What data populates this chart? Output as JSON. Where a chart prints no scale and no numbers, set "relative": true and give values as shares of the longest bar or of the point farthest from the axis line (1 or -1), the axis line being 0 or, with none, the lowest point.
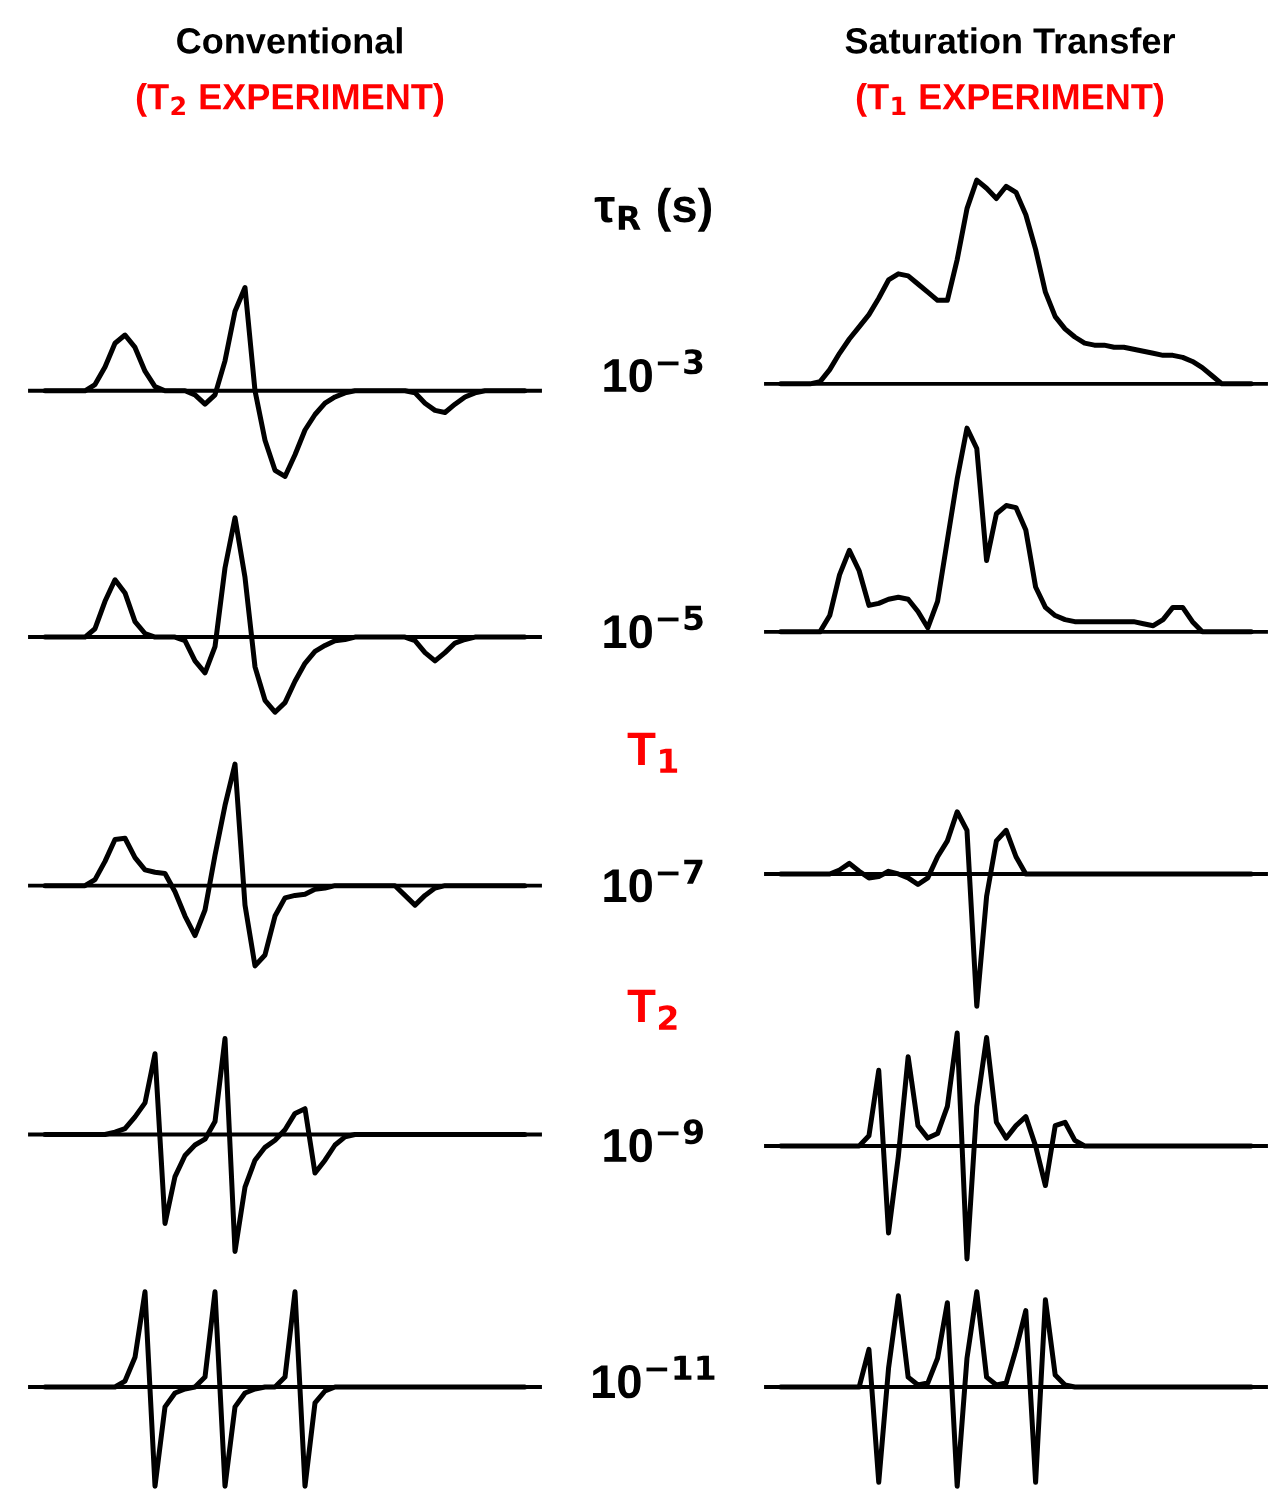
{
  "chart_data": [
    {
      "type": "line",
      "relative": true,
      "title": "Conventional",
      "subtitle": "(T$_{2}$ EXPERIMENT)",
      "annotations": [
        "τ$_{R}$ (s)"
      ],
      "y2label": "10$^{−3}$",
      "categories": [
        null,
        null,
        null,
        null,
        null,
        null,
        null,
        null,
        null,
        null,
        null,
        null,
        null,
        null,
        null,
        null,
        null,
        null,
        null,
        null,
        null,
        null,
        null,
        null,
        null,
        null,
        null,
        null,
        null,
        null,
        null,
        null,
        null,
        null,
        null,
        null,
        null,
        null,
        null,
        null,
        null,
        null,
        null,
        null,
        null,
        null,
        null,
        null,
        null
      ],
      "series": [
        {
          "color": "#000000",
          "values": [
            0,
            0,
            0,
            0,
            0,
            0.06,
            0.23,
            0.46,
            0.54,
            0.42,
            0.19,
            0.04,
            0,
            0,
            0,
            -0.04,
            -0.13,
            -0.04,
            0.29,
            0.77,
            1,
            0,
            -0.48,
            -0.77,
            -0.83,
            -0.62,
            -0.38,
            -0.23,
            -0.12,
            -0.06,
            -0.02,
            0,
            0,
            0,
            0,
            0,
            0,
            -0.02,
            -0.12,
            -0.19,
            -0.21,
            -0.13,
            -0.06,
            -0.02,
            0,
            0,
            0,
            0,
            0
          ]
        }
      ]
    },
    {
      "type": "line",
      "relative": true,
      "categories": [
        null,
        null,
        null,
        null,
        null,
        null,
        null,
        null,
        null,
        null,
        null,
        null,
        null,
        null,
        null,
        null,
        null,
        null,
        null,
        null,
        null,
        null,
        null,
        null,
        null,
        null,
        null,
        null,
        null,
        null,
        null,
        null,
        null,
        null,
        null,
        null,
        null,
        null,
        null,
        null,
        null,
        null,
        null,
        null,
        null,
        null,
        null,
        null,
        null
      ],
      "y2label": "10$^{−5}$",
      "annotations": [
        "T$_{1}$"
      ],
      "series": [
        {
          "color": "#000000",
          "values": [
            0,
            0,
            0,
            0,
            0,
            0.07,
            0.3,
            0.48,
            0.37,
            0.13,
            0.03,
            0,
            0,
            0,
            -0.03,
            -0.2,
            -0.3,
            -0.08,
            0.58,
            1,
            0.5,
            -0.25,
            -0.53,
            -0.63,
            -0.55,
            -0.37,
            -0.22,
            -0.12,
            -0.07,
            -0.03,
            -0.02,
            0,
            0,
            0,
            0,
            0,
            0,
            -0.03,
            -0.13,
            -0.2,
            -0.13,
            -0.05,
            -0.02,
            0,
            0,
            0,
            0,
            0,
            0
          ]
        }
      ]
    },
    {
      "type": "line",
      "relative": true,
      "categories": [
        null,
        null,
        null,
        null,
        null,
        null,
        null,
        null,
        null,
        null,
        null,
        null,
        null,
        null,
        null,
        null,
        null,
        null,
        null,
        null,
        null,
        null,
        null,
        null,
        null,
        null,
        null,
        null,
        null,
        null,
        null,
        null,
        null,
        null,
        null,
        null,
        null,
        null,
        null,
        null,
        null,
        null,
        null,
        null,
        null,
        null,
        null,
        null,
        null
      ],
      "y2label": "10$^{−7}$",
      "annotations": [
        "T$_{2}$"
      ],
      "series": [
        {
          "color": "#000000",
          "values": [
            0,
            0,
            0,
            0,
            0,
            0.05,
            0.2,
            0.38,
            0.39,
            0.23,
            0.13,
            0.11,
            0.1,
            -0.05,
            -0.25,
            -0.41,
            -0.2,
            0.25,
            0.66,
            1,
            -0.16,
            -0.66,
            -0.57,
            -0.25,
            -0.1,
            -0.08,
            -0.07,
            -0.03,
            -0.02,
            0,
            0,
            0,
            0,
            0,
            0,
            0,
            -0.08,
            -0.16,
            -0.08,
            -0.02,
            0,
            0,
            0,
            0,
            0,
            0,
            0,
            0,
            0
          ]
        }
      ]
    },
    {
      "type": "line",
      "relative": true,
      "categories": [
        null,
        null,
        null,
        null,
        null,
        null,
        null,
        null,
        null,
        null,
        null,
        null,
        null,
        null,
        null,
        null,
        null,
        null,
        null,
        null,
        null,
        null,
        null,
        null,
        null,
        null,
        null,
        null,
        null,
        null,
        null,
        null,
        null,
        null,
        null,
        null,
        null,
        null,
        null,
        null,
        null,
        null,
        null,
        null,
        null,
        null,
        null,
        null,
        null
      ],
      "y2label": "10$^{−9}$",
      "series": [
        {
          "color": "#000000",
          "values": [
            0,
            0,
            0,
            0,
            0,
            0,
            0,
            0.02,
            0.05,
            0.15,
            0.27,
            0.69,
            -0.76,
            -0.36,
            -0.18,
            -0.09,
            -0.04,
            0.11,
            0.82,
            -1,
            -0.45,
            -0.22,
            -0.11,
            -0.05,
            0.04,
            0.18,
            0.22,
            -0.33,
            -0.22,
            -0.09,
            -0.02,
            0,
            0,
            0,
            0,
            0,
            0,
            0,
            0,
            0,
            0,
            0,
            0,
            0,
            0,
            0,
            0,
            0,
            0
          ]
        }
      ]
    },
    {
      "type": "line",
      "relative": true,
      "categories": [
        null,
        null,
        null,
        null,
        null,
        null,
        null,
        null,
        null,
        null,
        null,
        null,
        null,
        null,
        null,
        null,
        null,
        null,
        null,
        null,
        null,
        null,
        null,
        null,
        null,
        null,
        null,
        null,
        null,
        null,
        null,
        null,
        null,
        null,
        null,
        null,
        null,
        null,
        null,
        null,
        null,
        null,
        null,
        null,
        null,
        null,
        null,
        null,
        null
      ],
      "y2label": "10$^{−11}$",
      "series": [
        {
          "color": "#000000",
          "values": [
            0,
            0,
            0,
            0,
            0,
            0,
            0,
            0,
            0.06,
            0.3,
            0.96,
            -1,
            -0.2,
            -0.06,
            -0.02,
            0,
            0.1,
            0.96,
            -1,
            -0.2,
            -0.06,
            -0.02,
            0,
            0,
            0.1,
            0.96,
            -1,
            -0.16,
            -0.04,
            0,
            0,
            0,
            0,
            0,
            0,
            0,
            0,
            0,
            0,
            0,
            0,
            0,
            0,
            0,
            0,
            0,
            0,
            0,
            0
          ]
        }
      ]
    },
    {
      "type": "line",
      "relative": true,
      "title": "Saturation Transfer",
      "subtitle": "(T$_{1}$ EXPERIMENT)",
      "categories": [
        null,
        null,
        null,
        null,
        null,
        null,
        null,
        null,
        null,
        null,
        null,
        null,
        null,
        null,
        null,
        null,
        null,
        null,
        null,
        null,
        null,
        null,
        null,
        null,
        null,
        null,
        null,
        null,
        null,
        null,
        null,
        null,
        null,
        null,
        null,
        null,
        null,
        null,
        null,
        null,
        null,
        null,
        null,
        null,
        null,
        null,
        null,
        null,
        null
      ],
      "series": [
        {
          "color": "#000000",
          "values": [
            0,
            0,
            0,
            0,
            0.01,
            0.07,
            0.15,
            0.22,
            0.28,
            0.34,
            0.42,
            0.51,
            0.54,
            0.53,
            0.49,
            0.45,
            0.41,
            0.41,
            0.61,
            0.86,
            1,
            0.96,
            0.91,
            0.97,
            0.94,
            0.83,
            0.66,
            0.45,
            0.33,
            0.27,
            0.23,
            0.2,
            0.19,
            0.19,
            0.18,
            0.18,
            0.17,
            0.16,
            0.15,
            0.14,
            0.14,
            0.13,
            0.11,
            0.08,
            0.04,
            0,
            0,
            0,
            0
          ]
        }
      ]
    },
    {
      "type": "line",
      "relative": true,
      "categories": [
        null,
        null,
        null,
        null,
        null,
        null,
        null,
        null,
        null,
        null,
        null,
        null,
        null,
        null,
        null,
        null,
        null,
        null,
        null,
        null,
        null,
        null,
        null,
        null,
        null,
        null,
        null,
        null,
        null,
        null,
        null,
        null,
        null,
        null,
        null,
        null,
        null,
        null,
        null,
        null,
        null,
        null,
        null,
        null,
        null,
        null,
        null,
        null,
        null
      ],
      "series": [
        {
          "color": "#000000",
          "values": [
            0,
            0,
            0,
            0,
            0,
            0.08,
            0.28,
            0.4,
            0.3,
            0.13,
            0.14,
            0.16,
            0.17,
            0.16,
            0.1,
            0.02,
            0.15,
            0.45,
            0.75,
            1,
            0.9,
            0.35,
            0.58,
            0.62,
            0.61,
            0.5,
            0.22,
            0.12,
            0.08,
            0.06,
            0.05,
            0.05,
            0.05,
            0.05,
            0.05,
            0.05,
            0.05,
            0.04,
            0.03,
            0.06,
            0.12,
            0.12,
            0.05,
            0,
            0,
            0,
            0,
            0,
            0
          ]
        }
      ]
    },
    {
      "type": "line",
      "relative": true,
      "categories": [
        null,
        null,
        null,
        null,
        null,
        null,
        null,
        null,
        null,
        null,
        null,
        null,
        null,
        null,
        null,
        null,
        null,
        null,
        null,
        null,
        null,
        null,
        null,
        null,
        null,
        null,
        null,
        null,
        null,
        null,
        null,
        null,
        null,
        null,
        null,
        null,
        null,
        null,
        null,
        null,
        null,
        null,
        null,
        null,
        null,
        null,
        null,
        null,
        null
      ],
      "series": [
        {
          "color": "#000000",
          "values": [
            0,
            0,
            0,
            0,
            0,
            0,
            0.03,
            0.08,
            0.02,
            -0.03,
            -0.02,
            0.02,
            0,
            -0.03,
            -0.08,
            -0.03,
            0.13,
            0.25,
            0.47,
            0.33,
            -1,
            -0.17,
            0.25,
            0.33,
            0.13,
            0,
            0,
            0,
            0,
            0,
            0,
            0,
            0,
            0,
            0,
            0,
            0,
            0,
            0,
            0,
            0,
            0,
            0,
            0,
            0,
            0,
            0,
            0,
            0
          ]
        }
      ]
    },
    {
      "type": "line",
      "relative": true,
      "categories": [
        null,
        null,
        null,
        null,
        null,
        null,
        null,
        null,
        null,
        null,
        null,
        null,
        null,
        null,
        null,
        null,
        null,
        null,
        null,
        null,
        null,
        null,
        null,
        null,
        null,
        null,
        null,
        null,
        null,
        null,
        null,
        null,
        null,
        null,
        null,
        null,
        null,
        null,
        null,
        null,
        null,
        null,
        null,
        null,
        null,
        null,
        null,
        null,
        null
      ],
      "series": [
        {
          "color": "#000000",
          "values": [
            0,
            0,
            0,
            0,
            0,
            0,
            0,
            0,
            0,
            0.09,
            0.67,
            -0.77,
            -0.09,
            0.79,
            0.18,
            0.07,
            0.11,
            0.35,
            1,
            -1,
            0.35,
            0.96,
            0.21,
            0.07,
            0.18,
            0.26,
            0,
            -0.35,
            0.18,
            0.21,
            0.05,
            0,
            0,
            0,
            0,
            0,
            0,
            0,
            0,
            0,
            0,
            0,
            0,
            0,
            0,
            0,
            0,
            0,
            0
          ]
        }
      ]
    },
    {
      "type": "line",
      "relative": true,
      "categories": [
        null,
        null,
        null,
        null,
        null,
        null,
        null,
        null,
        null,
        null,
        null,
        null,
        null,
        null,
        null,
        null,
        null,
        null,
        null,
        null,
        null,
        null,
        null,
        null,
        null,
        null,
        null,
        null,
        null,
        null,
        null,
        null,
        null,
        null,
        null,
        null,
        null,
        null,
        null,
        null,
        null,
        null,
        null,
        null,
        null,
        null,
        null,
        null,
        null
      ],
      "series": [
        {
          "color": "#000000",
          "values": [
            0,
            0,
            0,
            0,
            0,
            0,
            0,
            0,
            0,
            0.38,
            -0.96,
            0.19,
            0.92,
            0.1,
            0.02,
            0.04,
            0.29,
            0.85,
            -1,
            0.29,
            0.96,
            0.1,
            0.02,
            0.04,
            0.38,
            0.77,
            -0.96,
            0.88,
            0.12,
            0.02,
            0,
            0,
            0,
            0,
            0,
            0,
            0,
            0,
            0,
            0,
            0,
            0,
            0,
            0,
            0,
            0,
            0,
            0,
            0
          ]
        }
      ]
    }
  ]
}
